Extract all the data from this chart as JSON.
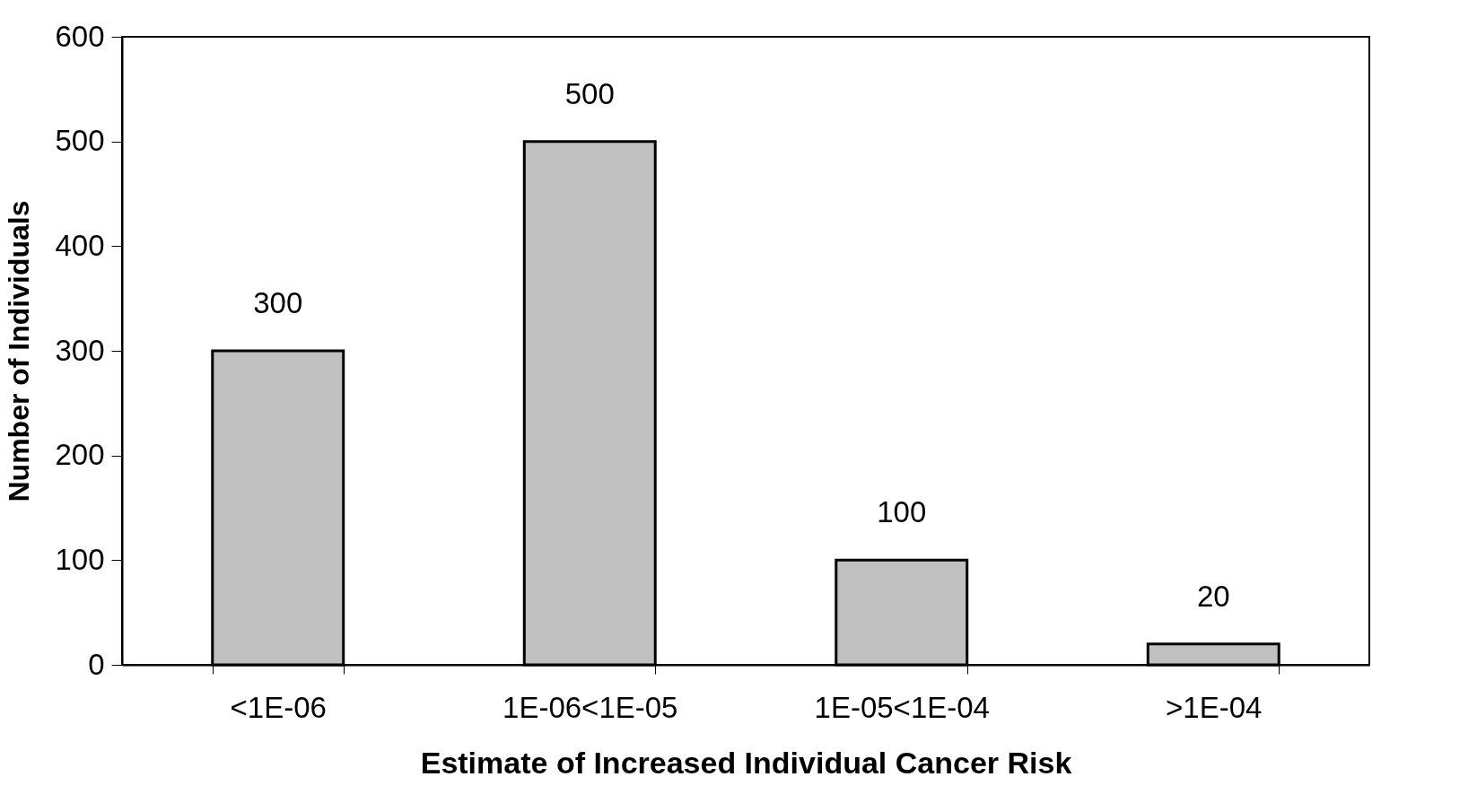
{
  "chart_data": {
    "type": "bar",
    "xlabel": "Estimate of Increased Individual Cancer Risk",
    "ylabel": "Number of Individuals",
    "categories": [
      "<1E-06",
      "1E-06<1E-05",
      "1E-05<1E-04",
      ">1E-04"
    ],
    "values": [
      300,
      500,
      100,
      20
    ],
    "color": "#c0c0c0",
    "ylim": [
      0,
      600
    ],
    "yticks": [
      0,
      100,
      200,
      300,
      400,
      500,
      600
    ],
    "data_labels": true,
    "grid": false
  }
}
